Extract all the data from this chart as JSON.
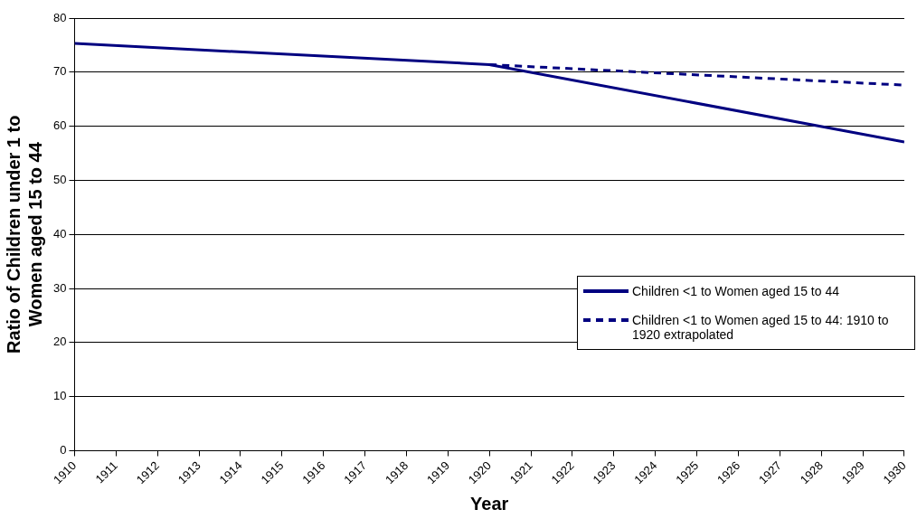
{
  "chart_data": {
    "type": "line",
    "xlabel": "Year",
    "ylabel": "Ratio of Children under 1 to Women aged 15 to 44",
    "xlim": [
      1910,
      1930
    ],
    "xticks": [
      1910,
      1911,
      1912,
      1913,
      1914,
      1915,
      1916,
      1917,
      1918,
      1919,
      1920,
      1921,
      1922,
      1923,
      1924,
      1925,
      1926,
      1927,
      1928,
      1929,
      1930
    ],
    "ylim": [
      0,
      80
    ],
    "yticks": [
      0,
      10,
      20,
      30,
      40,
      50,
      60,
      70,
      80
    ],
    "grid": "y",
    "legend": "right",
    "marker": "none",
    "series": [
      {
        "name": "Children <1 to Women aged 15 to 44",
        "color": "#000080",
        "line_style": "solid",
        "x": [
          1910,
          1920,
          1930
        ],
        "values": [
          75.3,
          71.4,
          57.1
        ]
      },
      {
        "name": "Children <1 to Women aged 15 to 44: 1910 to 1920 extrapolated",
        "color": "#000080",
        "line_style": "dashed",
        "x": [
          1920,
          1930
        ],
        "values": [
          71.4,
          67.6
        ]
      }
    ]
  }
}
